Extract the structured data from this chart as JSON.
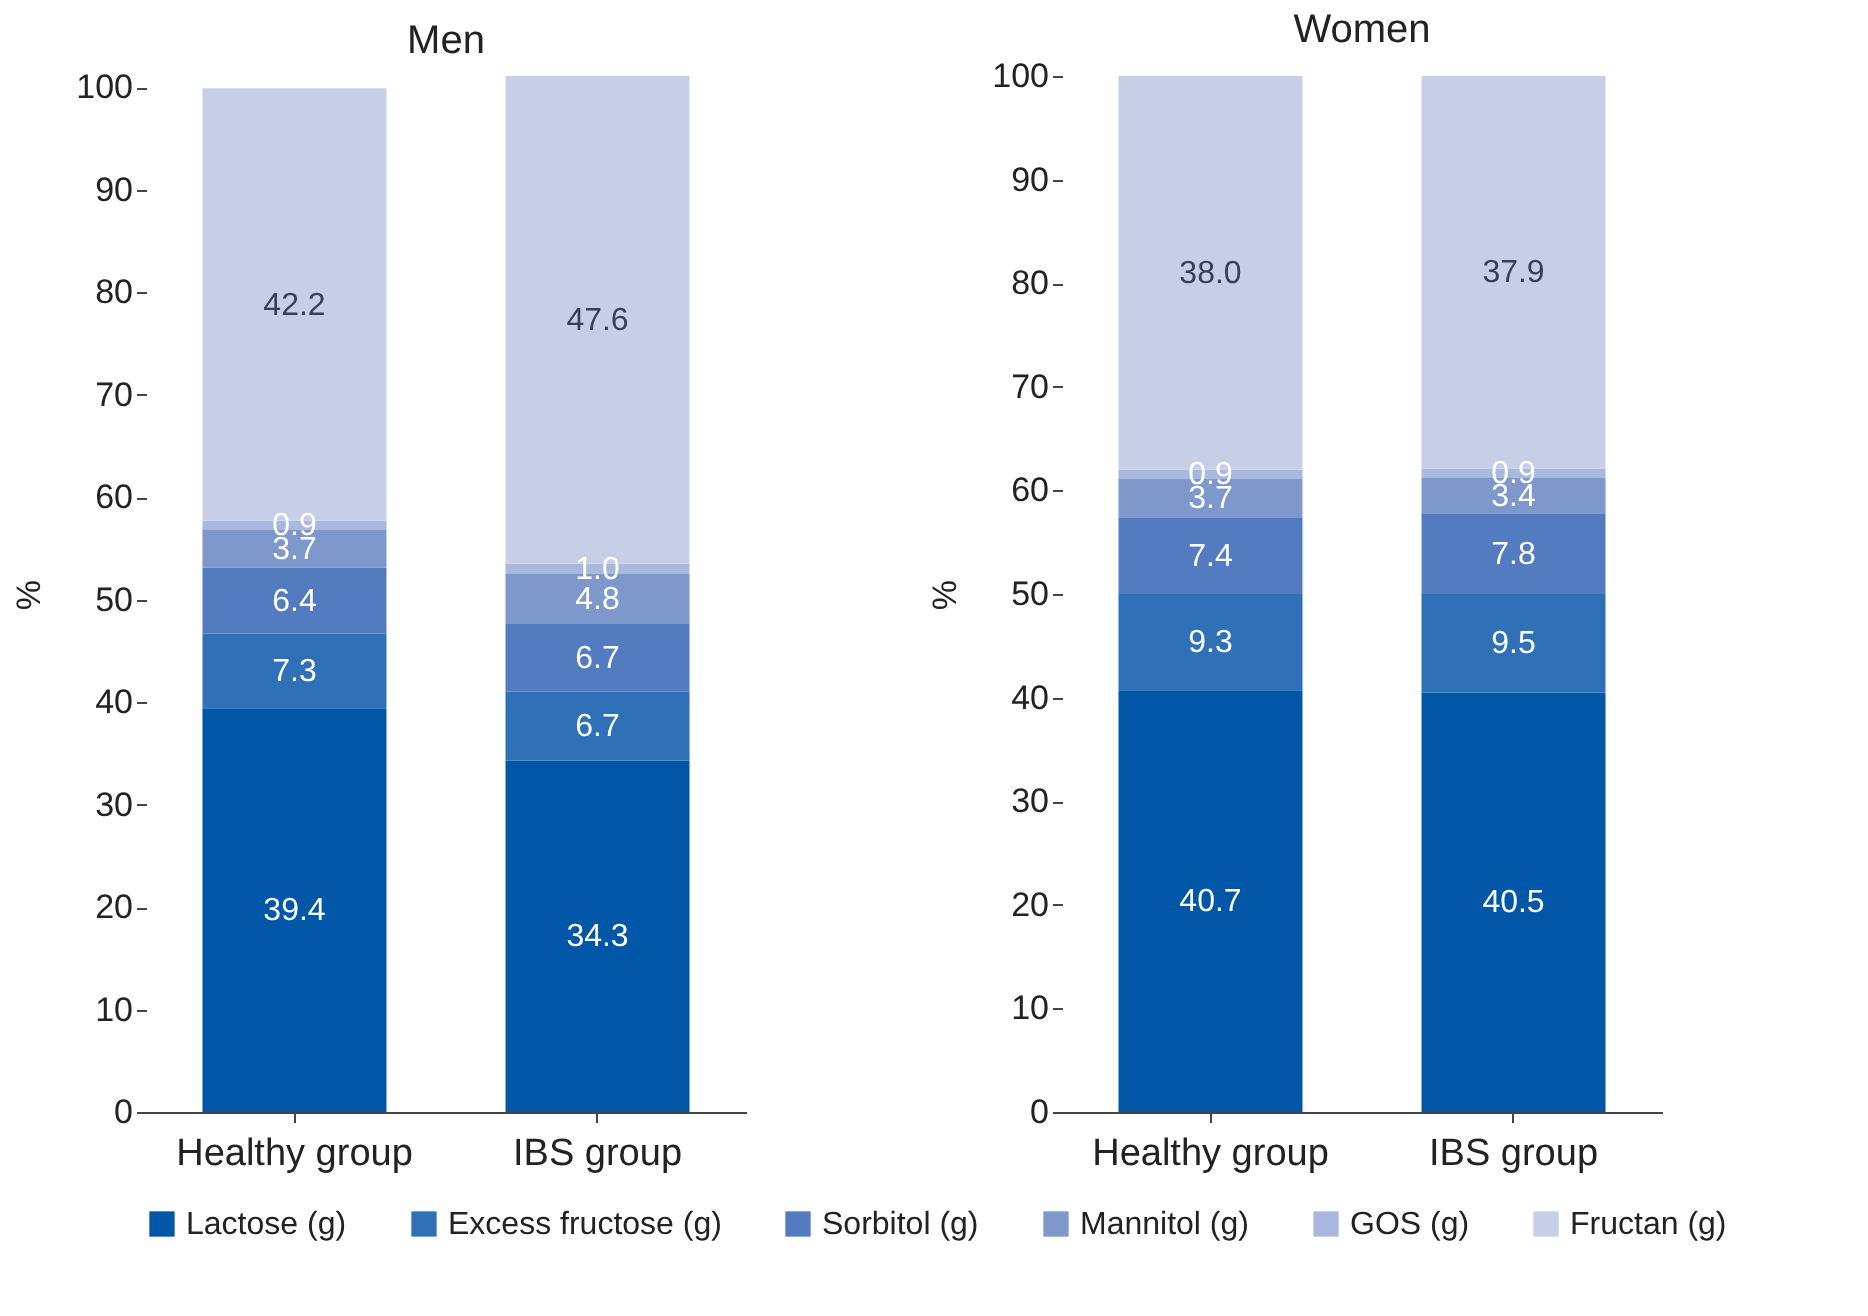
{
  "chart_data": [
    {
      "type": "bar",
      "title": "Men",
      "ylabel": "%",
      "categories": [
        "Healthy group",
        "IBS group"
      ],
      "stacked": true,
      "legend": "bottom",
      "ylim": [
        0,
        101.1
      ],
      "yticks": [
        0,
        10,
        20,
        30,
        40,
        50,
        60,
        70,
        80,
        90,
        100
      ],
      "grid": false,
      "series": [
        {
          "name": "Lactose (g)",
          "color": "#0057a8",
          "values": [
            39.4,
            34.3
          ],
          "value_labels": [
            "39.4",
            "34.3"
          ]
        },
        {
          "name": "Excess fructose (g)",
          "color": "#2f70b7",
          "values": [
            7.3,
            6.7
          ],
          "value_labels": [
            "7.3",
            "6.7"
          ]
        },
        {
          "name": "Sorbitol (g)",
          "color": "#537bc0",
          "values": [
            6.4,
            6.7
          ],
          "value_labels": [
            "6.4",
            "6.7"
          ]
        },
        {
          "name": "Mannitol (g)",
          "color": "#7f98cb",
          "values": [
            3.7,
            4.8
          ],
          "value_labels": [
            "3.7",
            "4.8"
          ]
        },
        {
          "name": "GOS (g)",
          "color": "#a9b8de",
          "values": [
            0.9,
            1.0
          ],
          "value_labels": [
            "0.9",
            "1.0"
          ]
        },
        {
          "name": "Fructan (g)",
          "color": "#c7cfe7",
          "values": [
            42.2,
            47.6
          ],
          "value_labels": [
            "42.2",
            "47.6"
          ]
        }
      ]
    },
    {
      "type": "bar",
      "title": "Women",
      "ylabel": "%",
      "categories": [
        "Healthy group",
        "IBS group"
      ],
      "stacked": true,
      "legend": "bottom",
      "ylim": [
        0,
        100
      ],
      "yticks": [
        0,
        10,
        20,
        30,
        40,
        50,
        60,
        70,
        80,
        90,
        100
      ],
      "grid": false,
      "series": [
        {
          "name": "Lactose (g)",
          "color": "#0057a8",
          "values": [
            40.7,
            40.5
          ],
          "value_labels": [
            "40.7",
            "40.5"
          ]
        },
        {
          "name": "Excess fructose (g)",
          "color": "#2f70b7",
          "values": [
            9.3,
            9.5
          ],
          "value_labels": [
            "9.3",
            "9.5"
          ]
        },
        {
          "name": "Sorbitol (g)",
          "color": "#537bc0",
          "values": [
            7.4,
            7.8
          ],
          "value_labels": [
            "7.4",
            "7.8"
          ]
        },
        {
          "name": "Mannitol (g)",
          "color": "#7f98cb",
          "values": [
            3.7,
            3.4
          ],
          "value_labels": [
            "3.7",
            "3.4"
          ]
        },
        {
          "name": "GOS (g)",
          "color": "#a9b8de",
          "values": [
            0.9,
            0.9
          ],
          "value_labels": [
            "0.9",
            "0.9"
          ]
        },
        {
          "name": "Fructan (g)",
          "color": "#c7cfe7",
          "values": [
            38.0,
            37.9
          ],
          "value_labels": [
            "38.0",
            "37.9"
          ]
        }
      ]
    }
  ]
}
